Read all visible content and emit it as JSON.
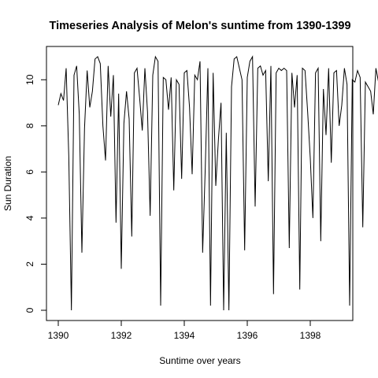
{
  "chart_data": {
    "type": "line",
    "title": "Timeseries Analysis of Melon's suntime  from 1390-1399",
    "xlabel": "Suntime over years",
    "ylabel": "Sun Duration",
    "xlim": [
      1390,
      1399
    ],
    "ylim": [
      0,
      11
    ],
    "x_ticks": [
      "1390",
      "1392",
      "1394",
      "1396",
      "1398"
    ],
    "y_ticks": [
      "0",
      "2",
      "4",
      "6",
      "8",
      "10"
    ],
    "x_start": 1390,
    "frequency": 12,
    "grid": false,
    "legend": "none",
    "line_color": "#000000",
    "series": [
      {
        "values": [
          8.9,
          9.4,
          9.1,
          10.5,
          6.7,
          0.0,
          10.2,
          10.6,
          8.5,
          2.5,
          7.9,
          10.4,
          8.8,
          9.5,
          10.9,
          11.0,
          10.7,
          8.0,
          6.5,
          10.6,
          8.4,
          10.2,
          3.8,
          9.4,
          1.8,
          8.1,
          9.5,
          8.3,
          3.2,
          10.3,
          10.5,
          9.2,
          7.8,
          10.5,
          8.6,
          4.1,
          10.2,
          11.0,
          10.8,
          0.2,
          10.1,
          10.0,
          8.7,
          10.1,
          5.2,
          10.0,
          9.8,
          5.7,
          10.3,
          10.4,
          8.8,
          5.9,
          10.2,
          10.0,
          10.8,
          2.5,
          6.2,
          10.5,
          0.2,
          10.3,
          5.4,
          7.4,
          9.0,
          0.0,
          7.7,
          0.0,
          9.7,
          10.9,
          11.0,
          10.5,
          10.0,
          2.6,
          10.1,
          10.8,
          11.0,
          4.5,
          10.5,
          10.6,
          10.2,
          10.4,
          5.6,
          10.6,
          0.7,
          10.3,
          10.5,
          10.4,
          10.5,
          10.4,
          2.7,
          10.3,
          8.8,
          10.2,
          0.9,
          10.5,
          10.4,
          8.6,
          6.6,
          4.0,
          10.3,
          10.5,
          3.0,
          9.6,
          7.6,
          10.5,
          6.4,
          10.3,
          10.4,
          8.0,
          8.9,
          10.5,
          9.8,
          0.2,
          10.0,
          9.9,
          10.4,
          10.1,
          3.6,
          9.9,
          9.7,
          9.5,
          8.5,
          10.5,
          9.9,
          9.6,
          7.4,
          10.4,
          6.7,
          10.1,
          9.7,
          5.2,
          9.6,
          4.3,
          10.5,
          0.0,
          10.6,
          10.2,
          9.7,
          7.1,
          10.4,
          7.9,
          6.5,
          10.2,
          9.2,
          10.8,
          8.0,
          10.4,
          9.3,
          10.0,
          4.7,
          10.9,
          10.3,
          10.8,
          0.0,
          10.7,
          10.1,
          10.0,
          8.8,
          2.1,
          9.8,
          10.7,
          10.9,
          9.6,
          10.6,
          7.9,
          1.3,
          10.6,
          10.5,
          9.5,
          10.2,
          9.9,
          8.7,
          9.3,
          2.2,
          10.0,
          9.5,
          3.8,
          9.8,
          10.3,
          10.2,
          9.3,
          4.8,
          10.5,
          10.3,
          9.9,
          10.5,
          8.1,
          10.6,
          8.5,
          11.0,
          10.8,
          10.6,
          9.5,
          8.9,
          10.7,
          10.6,
          10.5,
          2.0,
          9.9,
          9.5,
          8.0,
          0.1
        ]
      }
    ]
  }
}
